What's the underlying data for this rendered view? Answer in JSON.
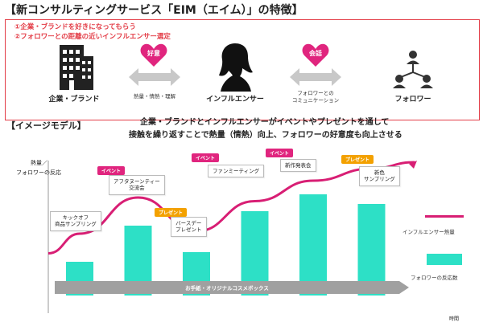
{
  "title": "【新コンサルティングサービス「EIM（エイム）」の特徴】",
  "points": [
    "①企業・ブランドを好きになってもらう",
    "②フォロワーとの距離の近いインフルエンサー選定"
  ],
  "entities": {
    "company": "企業・ブランド",
    "influencer": "インフルエンサー",
    "follower": "フォロワー"
  },
  "hearts": {
    "left": "好意",
    "right": "会話"
  },
  "arrow_captions": {
    "left": "熱量・情熱・理解",
    "right_line1": "フォロワーとの",
    "right_line2": "コミュニケーション"
  },
  "section_title": "【イメージモデル】",
  "description": {
    "line1": "企業・ブランドとインフルエンサーがイベントやプレゼントを通して",
    "line2": "接触を繰り返すことで熱量（情熱）向上、フォロワーの好意度も向上させる"
  },
  "chart_data": {
    "type": "bar",
    "ylabel_line1": "熱量／",
    "ylabel_line2": "フォロワーの反応",
    "xlabel": "時間",
    "categories": [
      "キックオフ 商品サンプリング",
      "アフタヌーンティー 交流会",
      "バースデー プレゼント",
      "ファンミーティング",
      "新作発表会",
      "新色 サンプリング"
    ],
    "series": [
      {
        "name": "フォロワーの反応数",
        "color": "#2de0c6",
        "values": [
          28,
          58,
          36,
          70,
          84,
          76
        ]
      },
      {
        "name": "インフルエンサー熱量",
        "color": "#d81e74",
        "values": [
          38,
          68,
          40,
          65,
          82,
          92
        ]
      }
    ],
    "timeline_arrow": "お手紙・オリジナルコスメボックス"
  },
  "events": [
    {
      "tag": "イベント",
      "tag_type": "pink",
      "line1": "アフタヌーンティー",
      "line2": "交流会"
    },
    {
      "tag": "プレゼント",
      "tag_type": "orange",
      "line1": "バースデー",
      "line2": "プレゼント"
    },
    {
      "tag": "イベント",
      "tag_type": "pink",
      "line1": "ファンミーティング",
      "line2": ""
    },
    {
      "tag": "イベント",
      "tag_type": "pink",
      "line1": "新作発表会",
      "line2": ""
    },
    {
      "tag": "プレゼント",
      "tag_type": "orange",
      "line1": "新色",
      "line2": "サンプリング"
    }
  ],
  "kickoff": {
    "line1": "キックオフ",
    "line2": "商品サンプリング"
  },
  "colors": {
    "accent_red": "#e33d47",
    "pink": "#e0257e",
    "orange": "#f3a100",
    "teal": "#2de0c6",
    "magenta": "#d81e74",
    "grey": "#9a9a9a"
  },
  "icons": [
    "building-icon",
    "woman-silhouette-icon",
    "network-people-icon",
    "heart-icon",
    "double-arrow-icon"
  ]
}
